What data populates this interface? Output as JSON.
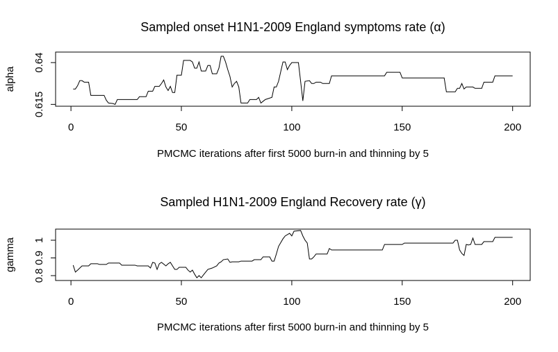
{
  "chart_data": [
    {
      "type": "line",
      "title": "Sampled onset H1N1-2009 England symptoms rate (α)",
      "xlabel": "PMCMC iterations after first 5000 burn-in and thinning by 5",
      "ylabel": "alpha",
      "color": "#000000",
      "x": [
        1,
        2,
        3,
        4,
        5,
        6,
        8,
        9,
        15,
        16,
        17,
        19,
        20,
        21,
        30,
        31,
        34,
        35,
        37,
        38,
        40,
        41,
        42,
        43,
        44,
        45,
        46,
        47,
        48,
        50,
        51,
        54,
        55,
        56,
        57,
        58,
        59,
        61,
        62,
        63,
        64,
        66,
        67,
        68,
        69,
        70,
        71,
        72,
        73,
        74,
        75,
        76,
        77,
        80,
        81,
        84,
        85,
        86,
        88,
        91,
        92,
        93,
        94,
        95,
        96,
        97,
        98,
        99,
        100,
        103,
        104,
        105,
        106,
        108,
        109,
        110,
        111,
        113,
        114,
        117,
        118,
        142,
        143,
        149,
        150,
        169,
        170,
        174,
        175,
        176,
        177,
        178,
        179,
        182,
        183,
        186,
        187,
        191,
        192,
        200
      ],
      "values": [
        0.6242,
        0.6242,
        0.6262,
        0.6292,
        0.6292,
        0.6283,
        0.6283,
        0.6204,
        0.6204,
        0.6175,
        0.6158,
        0.6155,
        0.615,
        0.6179,
        0.6179,
        0.6196,
        0.6196,
        0.6229,
        0.6229,
        0.6258,
        0.6258,
        0.6275,
        0.6296,
        0.6254,
        0.6233,
        0.6258,
        0.6221,
        0.6221,
        0.6325,
        0.6325,
        0.6413,
        0.6413,
        0.6404,
        0.6367,
        0.6367,
        0.6404,
        0.635,
        0.635,
        0.6383,
        0.6383,
        0.6333,
        0.6333,
        0.6367,
        0.6438,
        0.6438,
        0.6404,
        0.6358,
        0.6317,
        0.6254,
        0.6275,
        0.6288,
        0.6254,
        0.6158,
        0.6158,
        0.6179,
        0.6179,
        0.6192,
        0.6158,
        0.6179,
        0.6192,
        0.6254,
        0.6254,
        0.6288,
        0.6346,
        0.6404,
        0.6404,
        0.6358,
        0.6383,
        0.64,
        0.64,
        0.6288,
        0.6171,
        0.6288,
        0.6292,
        0.6275,
        0.6275,
        0.6283,
        0.6283,
        0.6275,
        0.6275,
        0.6321,
        0.6321,
        0.6342,
        0.6342,
        0.6308,
        0.6308,
        0.6225,
        0.6225,
        0.6246,
        0.6246,
        0.6275,
        0.6242,
        0.6254,
        0.6254,
        0.6246,
        0.6246,
        0.6283,
        0.6283,
        0.6321,
        0.6321
      ],
      "xlim": [
        -6.96,
        207.96
      ],
      "ylim": [
        0.6139,
        0.6463
      ],
      "xticks": [
        0,
        50,
        100,
        150,
        200
      ],
      "yticks": [
        0.615,
        0.64
      ]
    },
    {
      "type": "line",
      "title": "Sampled H1N1-2009 England Recovery rate (γ)",
      "xlabel": "PMCMC iterations after first 5000 burn-in and thinning by 5",
      "ylabel": "gamma",
      "color": "#000000",
      "x": [
        1,
        2,
        3,
        5,
        8,
        9,
        12,
        13,
        16,
        17,
        22,
        23,
        29,
        30,
        35,
        36,
        37,
        38,
        39,
        40,
        41,
        43,
        44,
        45,
        47,
        48,
        49,
        52,
        53,
        54,
        55,
        56,
        57,
        58,
        59,
        60,
        61,
        62,
        64,
        66,
        67,
        68,
        69,
        71,
        72,
        73,
        76,
        77,
        82,
        83,
        86,
        87,
        90,
        91,
        92,
        93,
        94,
        96,
        97,
        99,
        100,
        101,
        104,
        105,
        106,
        107,
        108,
        109,
        110,
        111,
        116,
        117,
        118,
        141,
        142,
        150,
        151,
        173,
        174,
        175,
        176,
        177,
        178,
        179,
        180,
        181,
        182,
        183,
        186,
        187,
        191,
        192,
        200
      ],
      "values": [
        0.859,
        0.82,
        0.831,
        0.855,
        0.855,
        0.867,
        0.867,
        0.863,
        0.863,
        0.871,
        0.871,
        0.859,
        0.859,
        0.855,
        0.855,
        0.843,
        0.875,
        0.871,
        0.835,
        0.867,
        0.875,
        0.855,
        0.867,
        0.875,
        0.835,
        0.835,
        0.847,
        0.847,
        0.831,
        0.82,
        0.831,
        0.808,
        0.788,
        0.8,
        0.788,
        0.804,
        0.82,
        0.835,
        0.843,
        0.855,
        0.871,
        0.878,
        0.89,
        0.894,
        0.875,
        0.878,
        0.878,
        0.882,
        0.882,
        0.89,
        0.89,
        0.906,
        0.906,
        0.882,
        0.882,
        0.922,
        0.965,
        1.008,
        1.024,
        1.039,
        1.024,
        1.051,
        1.055,
        1.024,
        1.0,
        0.984,
        0.894,
        0.894,
        0.906,
        0.922,
        0.922,
        0.953,
        0.945,
        0.945,
        0.976,
        0.976,
        0.984,
        0.984,
        1.0,
        1.0,
        0.945,
        0.925,
        0.914,
        0.976,
        0.973,
        0.976,
        1.012,
        0.976,
        0.976,
        0.992,
        0.992,
        1.016,
        1.016
      ],
      "xlim": [
        -6.96,
        207.96
      ],
      "ylim": [
        0.7725,
        1.0627
      ],
      "xticks": [
        0,
        50,
        100,
        150,
        200
      ],
      "yticks": [
        0.8,
        0.9,
        1.0
      ]
    }
  ]
}
